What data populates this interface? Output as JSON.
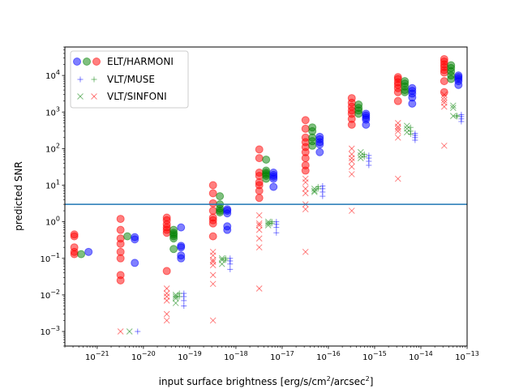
{
  "chart_data": {
    "type": "scatter",
    "xlabel": "input surface brightness [erg/s/cm2/arcsec2]",
    "ylabel": "predicted SNR",
    "xscale": "log",
    "yscale": "log",
    "xlim": [
      2e-22,
      1e-13
    ],
    "ylim": [
      0.0004,
      60000
    ],
    "x_tick_labels": [
      "10^-21",
      "10^-20",
      "10^-19",
      "10^-18",
      "10^-17",
      "10^-16",
      "10^-15",
      "10^-14",
      "10^-13"
    ],
    "y_tick_labels": [
      "10^-3",
      "10^-2",
      "10^-1",
      "10^0",
      "10^1",
      "10^2",
      "10^3",
      "10^4"
    ],
    "hline": {
      "y": 3,
      "color": "#1f77b4"
    },
    "legend": {
      "location": "upper left",
      "entries": [
        {
          "label": "ELT/HARMONI",
          "marker": "circle"
        },
        {
          "label": "VLT/MUSE",
          "marker": "plus"
        },
        {
          "label": "VLT/SINFONI",
          "marker": "x"
        }
      ]
    },
    "colors": {
      "red": "#ff0000",
      "green": "#008000",
      "blue": "#0000ff"
    },
    "series": [
      {
        "instrument": "ELT/HARMONI",
        "color": "red",
        "marker": "circle",
        "points": [
          [
            3.2e-22,
            0.45
          ],
          [
            3.2e-22,
            0.4
          ],
          [
            3.2e-22,
            0.2
          ],
          [
            3.2e-22,
            0.15
          ],
          [
            3.2e-22,
            0.13
          ],
          [
            3.2e-21,
            1.2
          ],
          [
            3.2e-21,
            0.6
          ],
          [
            3.2e-21,
            0.35
          ],
          [
            3.2e-21,
            0.25
          ],
          [
            3.2e-21,
            0.15
          ],
          [
            3.2e-21,
            0.1
          ],
          [
            3.2e-21,
            0.035
          ],
          [
            3.2e-21,
            0.025
          ],
          [
            3.2e-20,
            1.3
          ],
          [
            3.2e-20,
            1.1
          ],
          [
            3.2e-20,
            0.85
          ],
          [
            3.2e-20,
            0.7
          ],
          [
            3.2e-20,
            0.6
          ],
          [
            3.2e-20,
            0.5
          ],
          [
            3.2e-20,
            0.045
          ],
          [
            3.2e-19,
            10
          ],
          [
            3.2e-19,
            6
          ],
          [
            3.2e-19,
            3.2
          ],
          [
            3.2e-19,
            2
          ],
          [
            3.2e-19,
            1.3
          ],
          [
            3.2e-19,
            1.1
          ],
          [
            3.2e-19,
            0.9
          ],
          [
            3.2e-19,
            0.4
          ],
          [
            3.2e-18,
            95
          ],
          [
            3.2e-18,
            55
          ],
          [
            3.2e-18,
            22
          ],
          [
            3.2e-18,
            18
          ],
          [
            3.2e-18,
            12
          ],
          [
            3.2e-18,
            10
          ],
          [
            3.2e-18,
            7
          ],
          [
            3.2e-18,
            4.5
          ],
          [
            3.2e-17,
            600
          ],
          [
            3.2e-17,
            350
          ],
          [
            3.2e-17,
            200
          ],
          [
            3.2e-17,
            150
          ],
          [
            3.2e-17,
            110
          ],
          [
            3.2e-17,
            80
          ],
          [
            3.2e-17,
            55
          ],
          [
            3.2e-17,
            35
          ],
          [
            3.2e-17,
            25
          ],
          [
            3.2e-16,
            2400
          ],
          [
            3.2e-16,
            1800
          ],
          [
            3.2e-16,
            1400
          ],
          [
            3.2e-16,
            1100
          ],
          [
            3.2e-16,
            900
          ],
          [
            3.2e-16,
            650
          ],
          [
            3.2e-16,
            450
          ],
          [
            3.2e-15,
            9000
          ],
          [
            3.2e-15,
            8000
          ],
          [
            3.2e-15,
            6500
          ],
          [
            3.2e-15,
            5500
          ],
          [
            3.2e-15,
            4500
          ],
          [
            3.2e-15,
            3500
          ],
          [
            3.2e-15,
            2000
          ],
          [
            3.2e-14,
            28000
          ],
          [
            3.2e-14,
            24000
          ],
          [
            3.2e-14,
            20000
          ],
          [
            3.2e-14,
            17000
          ],
          [
            3.2e-14,
            14000
          ],
          [
            3.2e-14,
            12000
          ],
          [
            3.2e-14,
            7000
          ],
          [
            3.2e-14,
            3500
          ]
        ]
      },
      {
        "instrument": "ELT/HARMONI",
        "color": "green",
        "marker": "circle",
        "points": [
          [
            4.5e-22,
            0.13
          ],
          [
            4.5e-21,
            0.4
          ],
          [
            4.5e-20,
            0.6
          ],
          [
            4.5e-20,
            0.5
          ],
          [
            4.5e-20,
            0.45
          ],
          [
            4.5e-20,
            0.4
          ],
          [
            4.5e-20,
            0.35
          ],
          [
            4.5e-20,
            0.18
          ],
          [
            4.5e-19,
            5
          ],
          [
            4.5e-19,
            3
          ],
          [
            4.5e-19,
            2.3
          ],
          [
            4.5e-19,
            2
          ],
          [
            4.5e-19,
            1.8
          ],
          [
            4.5e-18,
            50
          ],
          [
            4.5e-18,
            25
          ],
          [
            4.5e-18,
            22
          ],
          [
            4.5e-18,
            20
          ],
          [
            4.5e-18,
            18
          ],
          [
            4.5e-18,
            15
          ],
          [
            4.5e-17,
            380
          ],
          [
            4.5e-17,
            300
          ],
          [
            4.5e-17,
            200
          ],
          [
            4.5e-17,
            160
          ],
          [
            4.5e-17,
            120
          ],
          [
            4.5e-16,
            1600
          ],
          [
            4.5e-16,
            1300
          ],
          [
            4.5e-16,
            1100
          ],
          [
            4.5e-16,
            900
          ],
          [
            4.5e-15,
            7000
          ],
          [
            4.5e-15,
            6000
          ],
          [
            4.5e-15,
            5000
          ],
          [
            4.5e-15,
            4000
          ],
          [
            4.5e-15,
            3500
          ],
          [
            4.5e-14,
            19000
          ],
          [
            4.5e-14,
            16000
          ],
          [
            4.5e-14,
            13000
          ],
          [
            4.5e-14,
            10000
          ],
          [
            4.5e-14,
            8000
          ]
        ]
      },
      {
        "instrument": "ELT/HARMONI",
        "color": "blue",
        "marker": "circle",
        "points": [
          [
            6.5e-22,
            0.15
          ],
          [
            6.5e-21,
            0.38
          ],
          [
            6.5e-21,
            0.33
          ],
          [
            6.5e-21,
            0.075
          ],
          [
            6.5e-20,
            0.7
          ],
          [
            6.5e-20,
            0.22
          ],
          [
            6.5e-20,
            0.2
          ],
          [
            6.5e-20,
            0.12
          ],
          [
            6.5e-20,
            0.1
          ],
          [
            6.5e-19,
            2.2
          ],
          [
            6.5e-19,
            2
          ],
          [
            6.5e-19,
            1.7
          ],
          [
            6.5e-19,
            0.75
          ],
          [
            6.5e-19,
            0.6
          ],
          [
            6.5e-18,
            22
          ],
          [
            6.5e-18,
            19
          ],
          [
            6.5e-18,
            17
          ],
          [
            6.5e-18,
            15
          ],
          [
            6.5e-18,
            9
          ],
          [
            6.5e-17,
            210
          ],
          [
            6.5e-17,
            180
          ],
          [
            6.5e-17,
            150
          ],
          [
            6.5e-17,
            130
          ],
          [
            6.5e-17,
            80
          ],
          [
            6.5e-16,
            900
          ],
          [
            6.5e-16,
            800
          ],
          [
            6.5e-16,
            700
          ],
          [
            6.5e-16,
            620
          ],
          [
            6.5e-16,
            450
          ],
          [
            6.5e-15,
            4500
          ],
          [
            6.5e-15,
            3800
          ],
          [
            6.5e-15,
            3200
          ],
          [
            6.5e-15,
            2500
          ],
          [
            6.5e-15,
            1700
          ],
          [
            6.5e-14,
            10000
          ],
          [
            6.5e-14,
            9000
          ],
          [
            6.5e-14,
            8000
          ],
          [
            6.5e-14,
            7000
          ],
          [
            6.5e-14,
            5500
          ]
        ]
      },
      {
        "instrument": "VLT/MUSE",
        "color": "blue",
        "marker": "plus",
        "points": [
          [
            7.5e-21,
            0.001
          ],
          [
            7.5e-20,
            0.011
          ],
          [
            7.5e-20,
            0.009
          ],
          [
            7.5e-20,
            0.007
          ],
          [
            7.5e-20,
            0.005
          ],
          [
            7.5e-19,
            0.1
          ],
          [
            7.5e-19,
            0.085
          ],
          [
            7.5e-19,
            0.07
          ],
          [
            7.5e-19,
            0.05
          ],
          [
            7.5e-18,
            1
          ],
          [
            7.5e-18,
            0.85
          ],
          [
            7.5e-18,
            0.7
          ],
          [
            7.5e-18,
            0.5
          ],
          [
            7.5e-17,
            9.5
          ],
          [
            7.5e-17,
            8
          ],
          [
            7.5e-17,
            6.5
          ],
          [
            7.5e-17,
            5
          ],
          [
            7.5e-16,
            65
          ],
          [
            7.5e-16,
            55
          ],
          [
            7.5e-16,
            45
          ],
          [
            7.5e-16,
            35
          ],
          [
            7.5e-15,
            260
          ],
          [
            7.5e-15,
            230
          ],
          [
            7.5e-15,
            200
          ],
          [
            7.5e-15,
            170
          ],
          [
            7.5e-14,
            850
          ],
          [
            7.5e-14,
            750
          ],
          [
            7.5e-14,
            650
          ],
          [
            7.5e-14,
            550
          ]
        ]
      },
      {
        "instrument": "VLT/MUSE",
        "color": "green",
        "marker": "plus",
        "points": [
          [
            6e-20,
            0.011
          ],
          [
            6e-20,
            0.009
          ],
          [
            6e-19,
            0.1
          ],
          [
            6e-19,
            0.09
          ],
          [
            6e-18,
            1
          ],
          [
            6e-18,
            0.9
          ],
          [
            6e-17,
            9
          ],
          [
            6e-17,
            8
          ],
          [
            6e-16,
            70
          ],
          [
            6e-16,
            60
          ],
          [
            6e-15,
            380
          ],
          [
            6e-15,
            300
          ],
          [
            6e-15,
            250
          ],
          [
            6e-14,
            800
          ],
          [
            6e-14,
            750
          ]
        ]
      },
      {
        "instrument": "VLT/SINFONI",
        "color": "red",
        "marker": "x",
        "points": [
          [
            3.2e-21,
            0.001
          ],
          [
            3.2e-20,
            0.015
          ],
          [
            3.2e-20,
            0.011
          ],
          [
            3.2e-20,
            0.009
          ],
          [
            3.2e-20,
            0.007
          ],
          [
            3.2e-20,
            0.003
          ],
          [
            3.2e-20,
            0.002
          ],
          [
            3.2e-19,
            0.15
          ],
          [
            3.2e-19,
            0.12
          ],
          [
            3.2e-19,
            0.09
          ],
          [
            3.2e-19,
            0.08
          ],
          [
            3.2e-19,
            0.065
          ],
          [
            3.2e-19,
            0.035
          ],
          [
            3.2e-19,
            0.02
          ],
          [
            3.2e-19,
            0.002
          ],
          [
            3.2e-18,
            1.5
          ],
          [
            3.2e-18,
            0.9
          ],
          [
            3.2e-18,
            0.8
          ],
          [
            3.2e-18,
            0.6
          ],
          [
            3.2e-18,
            0.35
          ],
          [
            3.2e-18,
            0.2
          ],
          [
            3.2e-18,
            0.015
          ],
          [
            3.2e-17,
            15
          ],
          [
            3.2e-17,
            12
          ],
          [
            3.2e-17,
            8
          ],
          [
            3.2e-17,
            6
          ],
          [
            3.2e-17,
            3
          ],
          [
            3.2e-17,
            2.2
          ],
          [
            3.2e-17,
            0.15
          ],
          [
            3.2e-16,
            100
          ],
          [
            3.2e-16,
            70
          ],
          [
            3.2e-16,
            55
          ],
          [
            3.2e-16,
            45
          ],
          [
            3.2e-16,
            32
          ],
          [
            3.2e-16,
            20
          ],
          [
            3.2e-16,
            2
          ],
          [
            3.2e-15,
            500
          ],
          [
            3.2e-15,
            400
          ],
          [
            3.2e-15,
            350
          ],
          [
            3.2e-15,
            300
          ],
          [
            3.2e-15,
            200
          ],
          [
            3.2e-15,
            15
          ],
          [
            3.2e-14,
            3000
          ],
          [
            3.2e-14,
            2500
          ],
          [
            3.2e-14,
            2100
          ],
          [
            3.2e-14,
            1800
          ],
          [
            3.2e-14,
            1400
          ],
          [
            3.2e-14,
            120
          ]
        ]
      },
      {
        "instrument": "VLT/SINFONI",
        "color": "green",
        "marker": "x",
        "points": [
          [
            5e-21,
            0.001
          ],
          [
            5e-20,
            0.01
          ],
          [
            5e-20,
            0.009
          ],
          [
            5e-20,
            0.008
          ],
          [
            5e-20,
            0.006
          ],
          [
            5e-19,
            0.1
          ],
          [
            5e-19,
            0.09
          ],
          [
            5e-19,
            0.07
          ],
          [
            5e-18,
            1
          ],
          [
            5e-18,
            0.9
          ],
          [
            5e-18,
            0.8
          ],
          [
            5e-17,
            8
          ],
          [
            5e-17,
            7
          ],
          [
            5e-17,
            6.5
          ],
          [
            5e-16,
            80
          ],
          [
            5e-16,
            65
          ],
          [
            5e-16,
            55
          ],
          [
            5e-15,
            420
          ],
          [
            5e-15,
            350
          ],
          [
            5e-15,
            280
          ],
          [
            5e-14,
            1500
          ],
          [
            5e-14,
            1300
          ],
          [
            5e-14,
            780
          ]
        ]
      }
    ]
  }
}
